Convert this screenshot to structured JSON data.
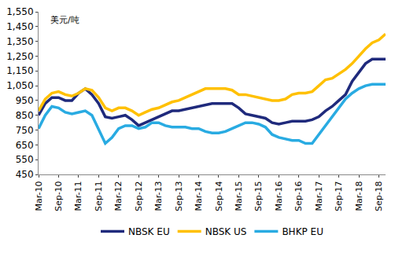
{
  "chart_data": {
    "type": "line",
    "ylabel": "美元/吨",
    "categories": [
      "Mar-10",
      null,
      null,
      "Sep-10",
      null,
      null,
      "Mar-11",
      null,
      null,
      "Sep-11",
      null,
      null,
      "Mar-12",
      null,
      null,
      "Sep-12",
      null,
      null,
      "Mar-13",
      null,
      null,
      "Sep-13",
      null,
      null,
      "Mar-14",
      null,
      null,
      "Sep-14",
      null,
      null,
      "Mar-15",
      null,
      null,
      "Sep-15",
      null,
      null,
      "Mar-16",
      null,
      null,
      "Sep-16",
      null,
      null,
      "Mar-17",
      null,
      null,
      "Sep-17",
      null,
      null,
      "Mar-18",
      null,
      null,
      "Sep-18",
      null
    ],
    "series": [
      {
        "name": "NBSK EU",
        "color": "#1f2a7c",
        "values": [
          850,
          930,
          970,
          970,
          950,
          950,
          1000,
          1030,
          990,
          930,
          840,
          830,
          840,
          850,
          820,
          780,
          800,
          820,
          840,
          860,
          880,
          880,
          890,
          900,
          910,
          920,
          930,
          930,
          930,
          930,
          900,
          860,
          850,
          840,
          830,
          800,
          790,
          800,
          810,
          810,
          810,
          820,
          840,
          880,
          910,
          950,
          990,
          1080,
          1140,
          1200,
          1230,
          1230,
          1230
        ]
      },
      {
        "name": "NBSK US",
        "color": "#ffc000",
        "values": [
          880,
          960,
          1000,
          1010,
          990,
          980,
          1000,
          1030,
          1020,
          970,
          900,
          880,
          900,
          900,
          880,
          850,
          870,
          890,
          900,
          920,
          940,
          950,
          970,
          990,
          1010,
          1030,
          1030,
          1030,
          1030,
          1020,
          990,
          990,
          980,
          970,
          960,
          950,
          950,
          960,
          990,
          1000,
          1000,
          1010,
          1050,
          1090,
          1100,
          1130,
          1160,
          1200,
          1250,
          1300,
          1340,
          1360,
          1400
        ]
      },
      {
        "name": "BHKP EU",
        "color": "#29abe2",
        "values": [
          760,
          850,
          910,
          900,
          870,
          860,
          870,
          880,
          850,
          760,
          660,
          700,
          760,
          780,
          780,
          760,
          770,
          800,
          800,
          780,
          770,
          770,
          770,
          760,
          760,
          740,
          730,
          730,
          740,
          760,
          780,
          800,
          800,
          790,
          770,
          720,
          700,
          690,
          680,
          680,
          660,
          660,
          720,
          780,
          840,
          900,
          960,
          1000,
          1030,
          1050,
          1060,
          1060,
          1060
        ]
      }
    ],
    "ylim": [
      450,
      1550
    ],
    "yticks": [
      450,
      550,
      650,
      750,
      850,
      950,
      {
        "value": 1050,
        "label": "1,050"
      },
      {
        "value": 1150,
        "label": "1,150"
      },
      {
        "value": 1250,
        "label": "1,250"
      },
      {
        "value": 1350,
        "label": "1,350"
      },
      {
        "value": 1450,
        "label": "1,450"
      },
      {
        "value": 1550,
        "label": "1,550"
      }
    ],
    "grid": false,
    "legend": "bottom"
  }
}
